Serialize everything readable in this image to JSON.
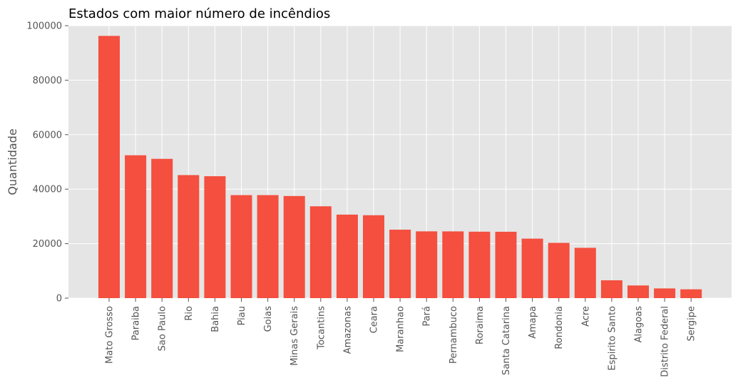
{
  "chart_data": {
    "type": "bar",
    "title": "Estados com maior número de incêndios",
    "xlabel": "",
    "ylabel": "Quantidade",
    "categories": [
      "Mato Grosso",
      "Paraiba",
      "Sao Paulo",
      "Rio",
      "Bahia",
      "Piau",
      "Goias",
      "Minas Gerais",
      "Tocantins",
      "Amazonas",
      "Ceara",
      "Maranhao",
      "Pará",
      "Pernambuco",
      "Roraima",
      "Santa Catarina",
      "Amapa",
      "Rondonia",
      "Acre",
      "Espirito Santo",
      "Alagoas",
      "Distrito Federal",
      "Sergipe"
    ],
    "values": [
      96246,
      52436,
      51121,
      45160,
      44746,
      37804,
      37811,
      37475,
      33708,
      30650,
      30429,
      25129,
      24512,
      24498,
      24385,
      24359,
      21832,
      20285,
      18464,
      6546,
      4644,
      3561,
      3237
    ],
    "ylim": [
      0,
      100000
    ],
    "yticks": [
      0,
      20000,
      40000,
      60000,
      80000,
      100000
    ],
    "grid": true,
    "colors": {
      "bar": "#F44F3F",
      "background": "#E5E5E5",
      "grid": "#FFFFFF",
      "text": "#555555"
    }
  }
}
